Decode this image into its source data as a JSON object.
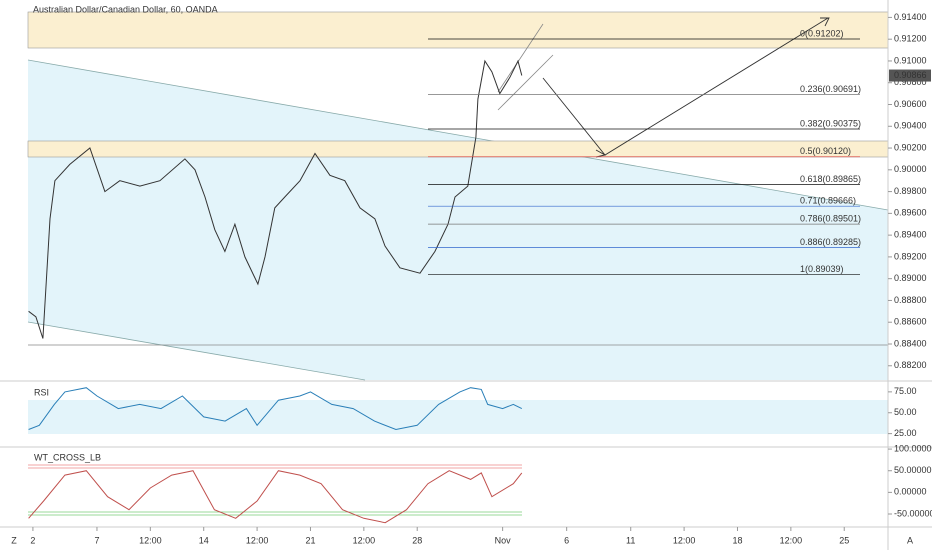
{
  "chart_data": [
    {
      "type": "line",
      "title": "Australian Dollar/Canadian Dollar, 60, OANDA",
      "color": "#333333",
      "x": [
        -0.2,
        0.14,
        0.47,
        0.8,
        1.03,
        1.73,
        2.67,
        3.37,
        4.07,
        5.01,
        5.95,
        7.12,
        7.59,
        8.06,
        8.52,
        8.99,
        9.46,
        9.93,
        10.54,
        10.87,
        11.33,
        11.8,
        12.51,
        13.21,
        13.91,
        14.61,
        15.32,
        16.02,
        16.49,
        17.19,
        18.13,
        18.83,
        19.44,
        19.77,
        20.37,
        20.75,
        20.84,
        21.17,
        21.5,
        21.87,
        22.34,
        22.72,
        22.9
      ],
      "values": [
        0.887,
        0.8865,
        0.8845,
        0.8955,
        0.899,
        0.9005,
        0.902,
        0.898,
        0.899,
        0.8985,
        0.899,
        0.901,
        0.9,
        0.8975,
        0.8945,
        0.8925,
        0.895,
        0.892,
        0.8895,
        0.892,
        0.8965,
        0.8975,
        0.899,
        0.9015,
        0.8995,
        0.899,
        0.8965,
        0.8955,
        0.893,
        0.891,
        0.8905,
        0.8925,
        0.895,
        0.8975,
        0.8985,
        0.903,
        0.9065,
        0.91,
        0.909,
        0.907,
        0.9085,
        0.91,
        0.90866
      ],
      "last_label": "0.90866",
      "xlim": [
        -0.23,
        40.05
      ],
      "xticks": [
        {
          "value": 0,
          "label": "2"
        },
        {
          "value": 3,
          "label": "7"
        },
        {
          "value": 5.5,
          "label": "12:00"
        },
        {
          "value": 8,
          "label": "14"
        },
        {
          "value": 10.5,
          "label": "12:00"
        },
        {
          "value": 13,
          "label": "21"
        },
        {
          "value": 15.5,
          "label": "12:00"
        },
        {
          "value": 18,
          "label": "28"
        },
        {
          "value": 22,
          "label": "Nov"
        },
        {
          "value": 25,
          "label": "6"
        },
        {
          "value": 28,
          "label": "11"
        },
        {
          "value": 30.5,
          "label": "12:00"
        },
        {
          "value": 33,
          "label": "18"
        },
        {
          "value": 35.5,
          "label": "12:00"
        },
        {
          "value": 38,
          "label": "25"
        }
      ],
      "ylim": [
        0.9156,
        0.8806
      ],
      "yticks": [
        {
          "value": 0.914,
          "label": "0.91400"
        },
        {
          "value": 0.912,
          "label": "0.91200"
        },
        {
          "value": 0.91,
          "label": "0.91000"
        },
        {
          "value": 0.908,
          "label": "0.90800"
        },
        {
          "value": 0.906,
          "label": "0.90600"
        },
        {
          "value": 0.904,
          "label": "0.90400"
        },
        {
          "value": 0.902,
          "label": "0.90200"
        },
        {
          "value": 0.9,
          "label": "0.90000"
        },
        {
          "value": 0.898,
          "label": "0.89800"
        },
        {
          "value": 0.896,
          "label": "0.89600"
        },
        {
          "value": 0.894,
          "label": "0.89400"
        },
        {
          "value": 0.892,
          "label": "0.89200"
        },
        {
          "value": 0.89,
          "label": "0.89000"
        },
        {
          "value": 0.888,
          "label": "0.88800"
        },
        {
          "value": 0.886,
          "label": "0.88600"
        },
        {
          "value": 0.884,
          "label": "0.88400"
        },
        {
          "value": 0.882,
          "label": "0.88200"
        }
      ],
      "fib": [
        {
          "value": 0.91202,
          "label": "0(0.91202)",
          "color": "#111111"
        },
        {
          "value": 0.90691,
          "label": "0.236(0.90691)",
          "color": "#777777"
        },
        {
          "value": 0.90375,
          "label": "0.382(0.90375)",
          "color": "#111111"
        },
        {
          "value": 0.9012,
          "label": "0.5(0.90120)",
          "color": "#d9534f"
        },
        {
          "value": 0.89865,
          "label": "0.618(0.89865)",
          "color": "#111111"
        },
        {
          "value": 0.89666,
          "label": "0.71(0.89666)",
          "color": "#3366cc"
        },
        {
          "value": 0.89501,
          "label": "0.786(0.89501)",
          "color": "#777777"
        },
        {
          "value": 0.89285,
          "label": "0.886(0.89285)",
          "color": "#3366cc"
        },
        {
          "value": 0.89039,
          "label": "1(0.89039)",
          "color": "#111111"
        }
      ]
    },
    {
      "type": "line",
      "title": "RSI",
      "color": "#2a7fb8",
      "x": [
        -0.2,
        0.3,
        1,
        1.5,
        2.5,
        3,
        4,
        5,
        6,
        7,
        8,
        9,
        10,
        10.5,
        11.5,
        12.5,
        13,
        14,
        15,
        16,
        17,
        18,
        19,
        20,
        20.5,
        21,
        21.3,
        22,
        22.5,
        22.9
      ],
      "values": [
        30,
        35,
        60,
        75,
        80,
        70,
        55,
        60,
        55,
        70,
        45,
        40,
        55,
        35,
        65,
        70,
        75,
        60,
        55,
        40,
        30,
        35,
        60,
        75,
        80,
        78,
        60,
        55,
        60,
        55
      ],
      "ylim": [
        88,
        9
      ],
      "yticks": [
        {
          "value": 75,
          "label": "75.00"
        },
        {
          "value": 50,
          "label": "50.00"
        },
        {
          "value": 25,
          "label": "25.00"
        }
      ]
    },
    {
      "type": "line",
      "title": "WT_CROSS_LB",
      "color": "#c0504d",
      "x": [
        -0.2,
        0.5,
        1.5,
        2.5,
        3.5,
        4.5,
        5.5,
        6.5,
        7.5,
        8.5,
        9.5,
        10.5,
        11.5,
        12.5,
        13.5,
        14.5,
        15.5,
        16.5,
        17.5,
        18.5,
        19.5,
        20.5,
        21,
        21.5,
        22.5,
        22.9
      ],
      "values": [
        -60,
        -20,
        40,
        50,
        -10,
        -40,
        10,
        40,
        50,
        -40,
        -60,
        -20,
        50,
        40,
        20,
        -40,
        -60,
        -70,
        -40,
        20,
        50,
        30,
        45,
        -10,
        20,
        45
      ],
      "ylim": [
        104.8,
        -80
      ],
      "yticks": [
        {
          "value": 100,
          "label": "100.00000"
        },
        {
          "value": 50,
          "label": "50.00000"
        },
        {
          "value": 0,
          "label": "0.00000"
        },
        {
          "value": -50,
          "label": "-50.00000"
        }
      ]
    }
  ],
  "footer": {
    "left": "Z",
    "right": "A"
  }
}
